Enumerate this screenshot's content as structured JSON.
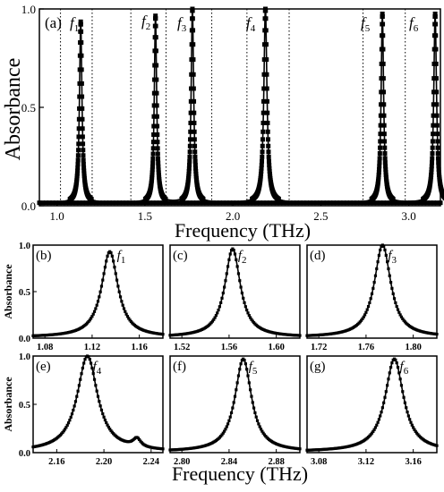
{
  "chart_data": [
    {
      "panel": "(a)",
      "type": "line",
      "xlabel": "Frequency (THz)",
      "ylabel": "Absorbance",
      "xlim": [
        0.9,
        3.18
      ],
      "ylim": [
        0,
        1.0
      ],
      "xticks": [
        "1.0",
        "1.5",
        "2.0",
        "2.5",
        "3.0"
      ],
      "xtick_values": [
        1.0,
        1.5,
        2.0,
        2.5,
        3.0
      ],
      "yticks": [
        "0.0",
        "0.5",
        "1.0"
      ],
      "ytick_values": [
        0,
        0.5,
        1.0
      ],
      "peaks": [
        {
          "label": "f",
          "sub": "1",
          "x": 1.135,
          "y": 0.92
        },
        {
          "label": "f",
          "sub": "2",
          "x": 1.56,
          "y": 0.95
        },
        {
          "label": "f",
          "sub": "3",
          "x": 1.77,
          "y": 0.99
        },
        {
          "label": "f",
          "sub": "4",
          "x": 2.185,
          "y": 0.99
        },
        {
          "label": "f",
          "sub": "5",
          "x": 2.85,
          "y": 0.96
        },
        {
          "label": "f",
          "sub": "6",
          "x": 3.15,
          "y": 0.96
        }
      ],
      "dotted_lines_x": [
        1.02,
        1.2,
        1.42,
        1.62,
        1.88,
        2.08,
        2.32,
        2.74,
        2.98
      ]
    },
    {
      "panel": "(b)",
      "type": "line",
      "ylabel": "Absorbance",
      "xlim": [
        1.07,
        1.18
      ],
      "ylim": [
        0,
        1.0
      ],
      "xticks": [
        "1.08",
        "1.12",
        "1.16"
      ],
      "xtick_values": [
        1.08,
        1.12,
        1.16
      ],
      "yticks": [
        "0.0",
        "0.5",
        "1.0"
      ],
      "ytick_values": [
        0,
        0.5,
        1.0
      ],
      "peak_label": {
        "label": "f",
        "sub": "1"
      },
      "peak_x": 1.135,
      "peak_y": 0.92,
      "width": 0.0085
    },
    {
      "panel": "(c)",
      "type": "line",
      "xlim": [
        1.51,
        1.62
      ],
      "ylim": [
        0,
        1.0
      ],
      "xticks": [
        "1.52",
        "1.56",
        "1.60"
      ],
      "xtick_values": [
        1.52,
        1.56,
        1.6
      ],
      "peak_label": {
        "label": "f",
        "sub": "2"
      },
      "peak_x": 1.563,
      "peak_y": 0.95,
      "width": 0.008
    },
    {
      "panel": "(d)",
      "type": "line",
      "xlim": [
        1.71,
        1.82
      ],
      "ylim": [
        0,
        1.0
      ],
      "xticks": [
        "1.72",
        "1.76",
        "1.80"
      ],
      "xtick_values": [
        1.72,
        1.76,
        1.8
      ],
      "peak_label": {
        "label": "f",
        "sub": "3"
      },
      "peak_x": 1.774,
      "peak_y": 0.99,
      "width": 0.0085
    },
    {
      "panel": "(e)",
      "type": "line",
      "ylabel": "Absorbance",
      "xlim": [
        2.14,
        2.25
      ],
      "ylim": [
        0,
        1.0
      ],
      "xticks": [
        "2.16",
        "2.20",
        "2.24"
      ],
      "xtick_values": [
        2.16,
        2.2,
        2.24
      ],
      "yticks": [
        "0.0",
        "0.5",
        "1.0"
      ],
      "ytick_values": [
        0,
        0.5,
        1.0
      ],
      "peak_label": {
        "label": "f",
        "sub": "4"
      },
      "peak_x": 2.186,
      "peak_y": 0.99,
      "width": 0.0105,
      "shoulder": {
        "x": 2.228,
        "y": 0.17
      }
    },
    {
      "panel": "(f)",
      "type": "line",
      "xlim": [
        2.79,
        2.9
      ],
      "ylim": [
        0,
        1.0
      ],
      "xticks": [
        "2.80",
        "2.84",
        "2.88"
      ],
      "xtick_values": [
        2.8,
        2.84,
        2.88
      ],
      "peak_label": {
        "label": "f",
        "sub": "5"
      },
      "peak_x": 2.852,
      "peak_y": 0.96,
      "width": 0.0085
    },
    {
      "panel": "(g)",
      "type": "line",
      "xlim": [
        3.07,
        3.18
      ],
      "ylim": [
        0,
        1.0
      ],
      "xticks": [
        "3.08",
        "3.12",
        "3.16"
      ],
      "xtick_values": [
        3.08,
        3.12,
        3.16
      ],
      "peak_label": {
        "label": "f",
        "sub": "6"
      },
      "peak_x": 3.144,
      "peak_y": 0.96,
      "width": 0.0095
    }
  ],
  "bottom_xlabel": "Frequency (THz)"
}
